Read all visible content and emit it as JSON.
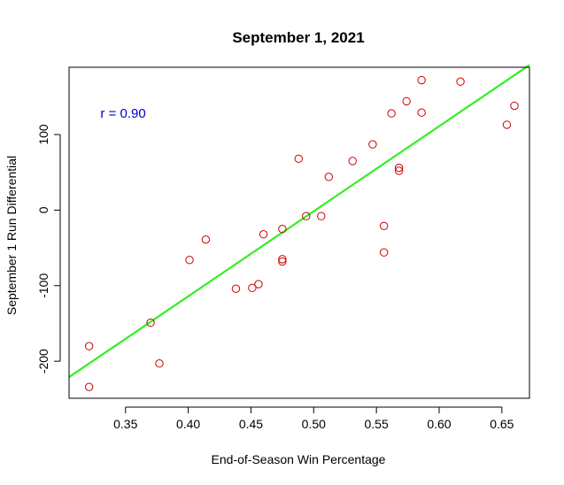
{
  "chart_data": {
    "type": "scatter",
    "title": "September 1, 2021",
    "xlabel": "End-of-Season Win Percentage",
    "ylabel": "September 1 Run Differential",
    "xlim": [
      0.305,
      0.672
    ],
    "ylim": [
      -249,
      189
    ],
    "xticks": [
      0.35,
      0.4,
      0.45,
      0.5,
      0.55,
      0.6,
      0.65
    ],
    "xtick_labels": [
      "0.35",
      "0.40",
      "0.45",
      "0.50",
      "0.55",
      "0.60",
      "0.65"
    ],
    "yticks": [
      -200,
      -100,
      0,
      100
    ],
    "ytick_labels": [
      "-200",
      "-100",
      "0",
      "100"
    ],
    "grid": false,
    "legend": "none",
    "annotation": {
      "text": "r = 0.90",
      "x": 0.33,
      "y": 128,
      "color": "#0000cc"
    },
    "point_color": "#cc0000",
    "fit_color": "#33ee22",
    "fit_line": {
      "x": [
        0.305,
        0.672
      ],
      "y": [
        -221,
        192
      ]
    },
    "points": [
      {
        "x": 0.321,
        "y": -180
      },
      {
        "x": 0.321,
        "y": -234
      },
      {
        "x": 0.37,
        "y": -149
      },
      {
        "x": 0.377,
        "y": -203
      },
      {
        "x": 0.401,
        "y": -66
      },
      {
        "x": 0.414,
        "y": -39
      },
      {
        "x": 0.438,
        "y": -104
      },
      {
        "x": 0.451,
        "y": -103
      },
      {
        "x": 0.456,
        "y": -98
      },
      {
        "x": 0.46,
        "y": -32
      },
      {
        "x": 0.475,
        "y": -25
      },
      {
        "x": 0.475,
        "y": -65
      },
      {
        "x": 0.475,
        "y": -68
      },
      {
        "x": 0.488,
        "y": 68
      },
      {
        "x": 0.494,
        "y": -8
      },
      {
        "x": 0.506,
        "y": -8
      },
      {
        "x": 0.512,
        "y": 44
      },
      {
        "x": 0.531,
        "y": 65
      },
      {
        "x": 0.547,
        "y": 87
      },
      {
        "x": 0.556,
        "y": -21
      },
      {
        "x": 0.556,
        "y": -56
      },
      {
        "x": 0.562,
        "y": 128
      },
      {
        "x": 0.568,
        "y": 56
      },
      {
        "x": 0.568,
        "y": 52
      },
      {
        "x": 0.574,
        "y": 144
      },
      {
        "x": 0.586,
        "y": 172
      },
      {
        "x": 0.586,
        "y": 129
      },
      {
        "x": 0.617,
        "y": 170
      },
      {
        "x": 0.654,
        "y": 113
      },
      {
        "x": 0.66,
        "y": 138
      }
    ]
  }
}
